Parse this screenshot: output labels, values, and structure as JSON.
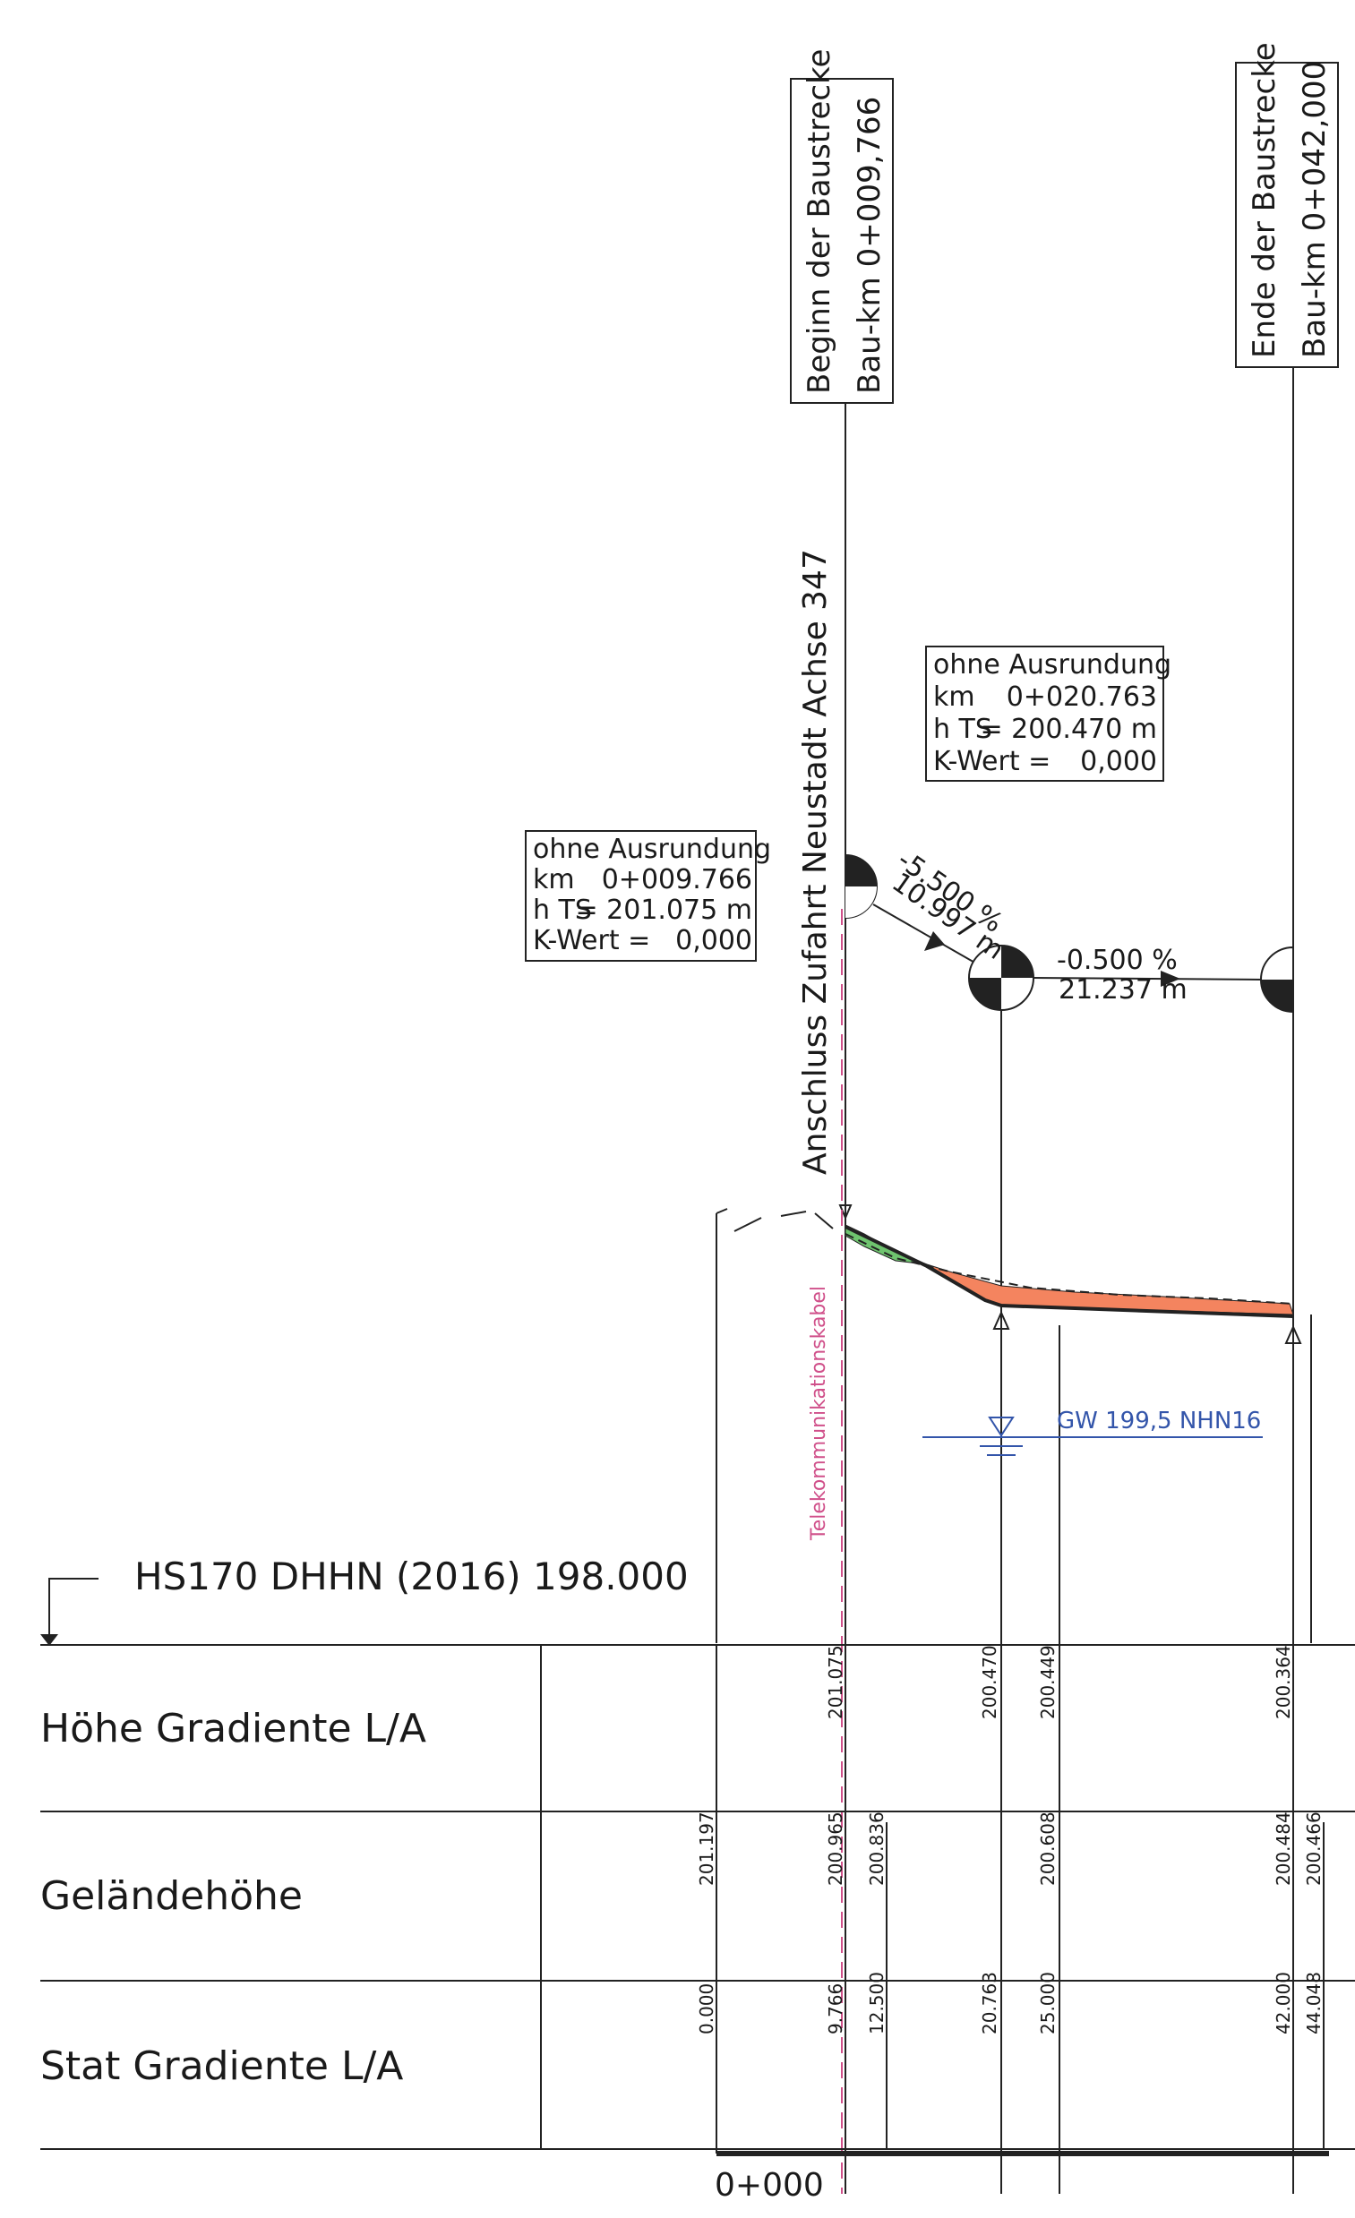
{
  "markers": {
    "begin": {
      "line1": "Beginn der Baustrecke",
      "line2": "Bau-km 0+009,766"
    },
    "end": {
      "line1": "Ende der Baustrecke",
      "line2": "Bau-km 0+042,000"
    },
    "connection": "Anschluss Zufahrt Neustadt Achse 347"
  },
  "vertex_boxes": [
    {
      "title": "ohne Ausrundung",
      "km_label": "km",
      "km_value": "0+009.766",
      "h_label": "h TS",
      "h_value": "= 201.075 m",
      "k_label": "K-Wert =",
      "k_value": "0,000"
    },
    {
      "title": "ohne Ausrundung",
      "km_label": "km",
      "km_value": "0+020.763",
      "h_label": "h TS",
      "h_value": "= 200.470 m",
      "k_label": "K-Wert =",
      "k_value": "0,000"
    }
  ],
  "grades": [
    {
      "percent": "-5.500 %",
      "length": "10.997 m"
    },
    {
      "percent": "-0.500 %",
      "length": "21.237 m"
    }
  ],
  "annotations": {
    "groundwater": "GW 199,5 NHN16",
    "cable": "Telekommunikationskabel",
    "datum": "HS170 DHHN (2016) 198.000",
    "start_station": "0+000"
  },
  "colors": {
    "fill_green": "#6fc46f",
    "fill_orange": "#f4845f",
    "cable_magenta": "#d0508a",
    "groundwater_blue": "#3355aa",
    "line_dark": "#222222"
  },
  "band": {
    "rows": [
      {
        "label": "Höhe Gradiente L/A",
        "values": [
          "201.075",
          "200.470",
          "200.449",
          "200.364"
        ]
      },
      {
        "label": "Geländehöhe",
        "values": [
          "201.197",
          "200.965",
          "200.836",
          "200.608",
          "200.484",
          "200.466"
        ]
      },
      {
        "label": "Stat Gradiente L/A",
        "values": [
          "0.000",
          "9.766",
          "12.500",
          "20.763",
          "25.000",
          "42.000",
          "44.048"
        ]
      }
    ]
  }
}
